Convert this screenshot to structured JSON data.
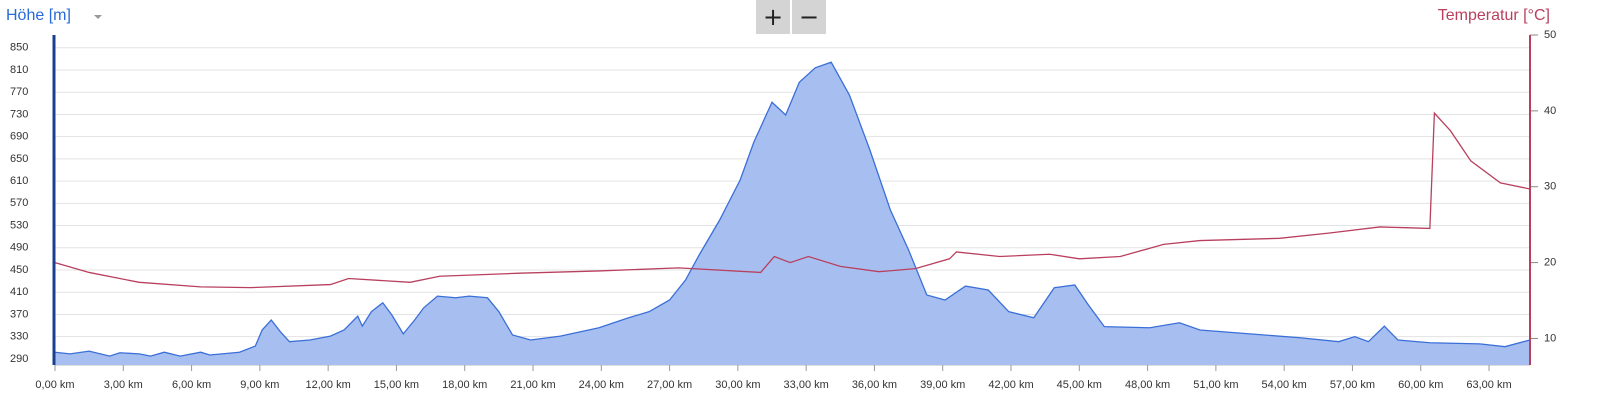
{
  "toolbar": {
    "zoom_in": "+",
    "zoom_out": "−"
  },
  "chart_data": {
    "type": "area",
    "ylabel": "Höhe [m]",
    "y2label": "Temperatur [°C]",
    "xlim": [
      0,
      64.8
    ],
    "ylim": [
      279,
      873
    ],
    "y2lim": [
      6.5,
      50
    ],
    "xticks": [
      {
        "value": 0,
        "label": "0,00 km"
      },
      {
        "value": 3,
        "label": "3,00 km"
      },
      {
        "value": 6,
        "label": "6,00 km"
      },
      {
        "value": 9,
        "label": "9,00 km"
      },
      {
        "value": 12,
        "label": "12,00 km"
      },
      {
        "value": 15,
        "label": "15,00 km"
      },
      {
        "value": 18,
        "label": "18,00 km"
      },
      {
        "value": 21,
        "label": "21,00 km"
      },
      {
        "value": 24,
        "label": "24,00 km"
      },
      {
        "value": 27,
        "label": "27,00 km"
      },
      {
        "value": 30,
        "label": "30,00 km"
      },
      {
        "value": 33,
        "label": "33,00 km"
      },
      {
        "value": 36,
        "label": "36,00 km"
      },
      {
        "value": 39,
        "label": "39,00 km"
      },
      {
        "value": 42,
        "label": "42,00 km"
      },
      {
        "value": 45,
        "label": "45,00 km"
      },
      {
        "value": 48,
        "label": "48,00 km"
      },
      {
        "value": 51,
        "label": "51,00 km"
      },
      {
        "value": 54,
        "label": "54,00 km"
      },
      {
        "value": 57,
        "label": "57,00 km"
      },
      {
        "value": 60,
        "label": "60,00 km"
      },
      {
        "value": 63,
        "label": "63,00 km"
      }
    ],
    "yticks": [
      290,
      330,
      370,
      410,
      450,
      490,
      530,
      570,
      610,
      650,
      690,
      730,
      770,
      810,
      850
    ],
    "y2ticks": [
      10,
      20,
      30,
      40,
      50
    ],
    "grid": true,
    "series": [
      {
        "name": "Höhe [m]",
        "color": "#3b6fd8",
        "fill": "#a7bff0",
        "x": [
          0,
          0.66,
          1.5,
          2.4,
          2.85,
          3.7,
          4.2,
          4.8,
          5.5,
          6.4,
          6.8,
          8.1,
          8.8,
          9.1,
          9.5,
          9.9,
          10.3,
          11.2,
          12.1,
          12.7,
          13.3,
          13.5,
          13.9,
          14.4,
          14.8,
          15.3,
          15.8,
          16.2,
          16.8,
          17.6,
          18.2,
          19.0,
          19.5,
          20.1,
          20.9,
          22.2,
          23.9,
          25.2,
          26.1,
          27.0,
          27.7,
          28.3,
          29.2,
          30.1,
          30.7,
          31.5,
          32.1,
          32.7,
          33.4,
          34.1,
          34.9,
          35.8,
          36.7,
          37.5,
          38.3,
          39.1,
          40.0,
          41.0,
          41.9,
          43.0,
          43.9,
          44.8,
          45.4,
          46.1,
          48.1,
          49.4,
          50.3,
          52.5,
          54.7,
          56.4,
          57.1,
          57.7,
          58.4,
          59.0,
          60.4,
          62.6,
          63.7,
          64.8
        ],
        "values": [
          302,
          299,
          304,
          295,
          301,
          299,
          295,
          302,
          295,
          302,
          297,
          302,
          313,
          342,
          360,
          339,
          321,
          324,
          331,
          342,
          367,
          349,
          375,
          391,
          369,
          335,
          360,
          382,
          403,
          400,
          403,
          400,
          375,
          333,
          324,
          331,
          346,
          364,
          375,
          396,
          432,
          477,
          540,
          612,
          680,
          752,
          729,
          788,
          814,
          824,
          765,
          666,
          558,
          486,
          405,
          396,
          421,
          414,
          375,
          364,
          418,
          423,
          387,
          348,
          346,
          355,
          342,
          335,
          328,
          321,
          330,
          321,
          349,
          324,
          319,
          317,
          312,
          324
        ]
      },
      {
        "name": "Temperatur [°C]",
        "color": "#b8405e",
        "axis": "y2",
        "x": [
          0,
          1.5,
          3.7,
          6.4,
          8.6,
          12.1,
          12.9,
          15.6,
          16.9,
          20.4,
          23.9,
          27.4,
          31.0,
          31.6,
          32.3,
          33.1,
          34.5,
          36.2,
          37.8,
          39.3,
          39.6,
          41.5,
          43.7,
          45.0,
          46.8,
          48.7,
          50.3,
          53.8,
          56.0,
          58.2,
          60.4,
          60.6,
          61.3,
          62.2,
          63.5,
          64.8
        ],
        "values": [
          20.0,
          18.7,
          17.4,
          16.8,
          16.7,
          17.1,
          17.9,
          17.4,
          18.2,
          18.6,
          18.9,
          19.3,
          18.7,
          20.8,
          20.0,
          20.8,
          19.5,
          18.8,
          19.2,
          20.5,
          21.4,
          20.8,
          21.1,
          20.5,
          20.8,
          22.4,
          22.9,
          23.2,
          23.9,
          24.7,
          24.5,
          39.7,
          37.4,
          33.4,
          30.5,
          29.7
        ]
      }
    ]
  }
}
